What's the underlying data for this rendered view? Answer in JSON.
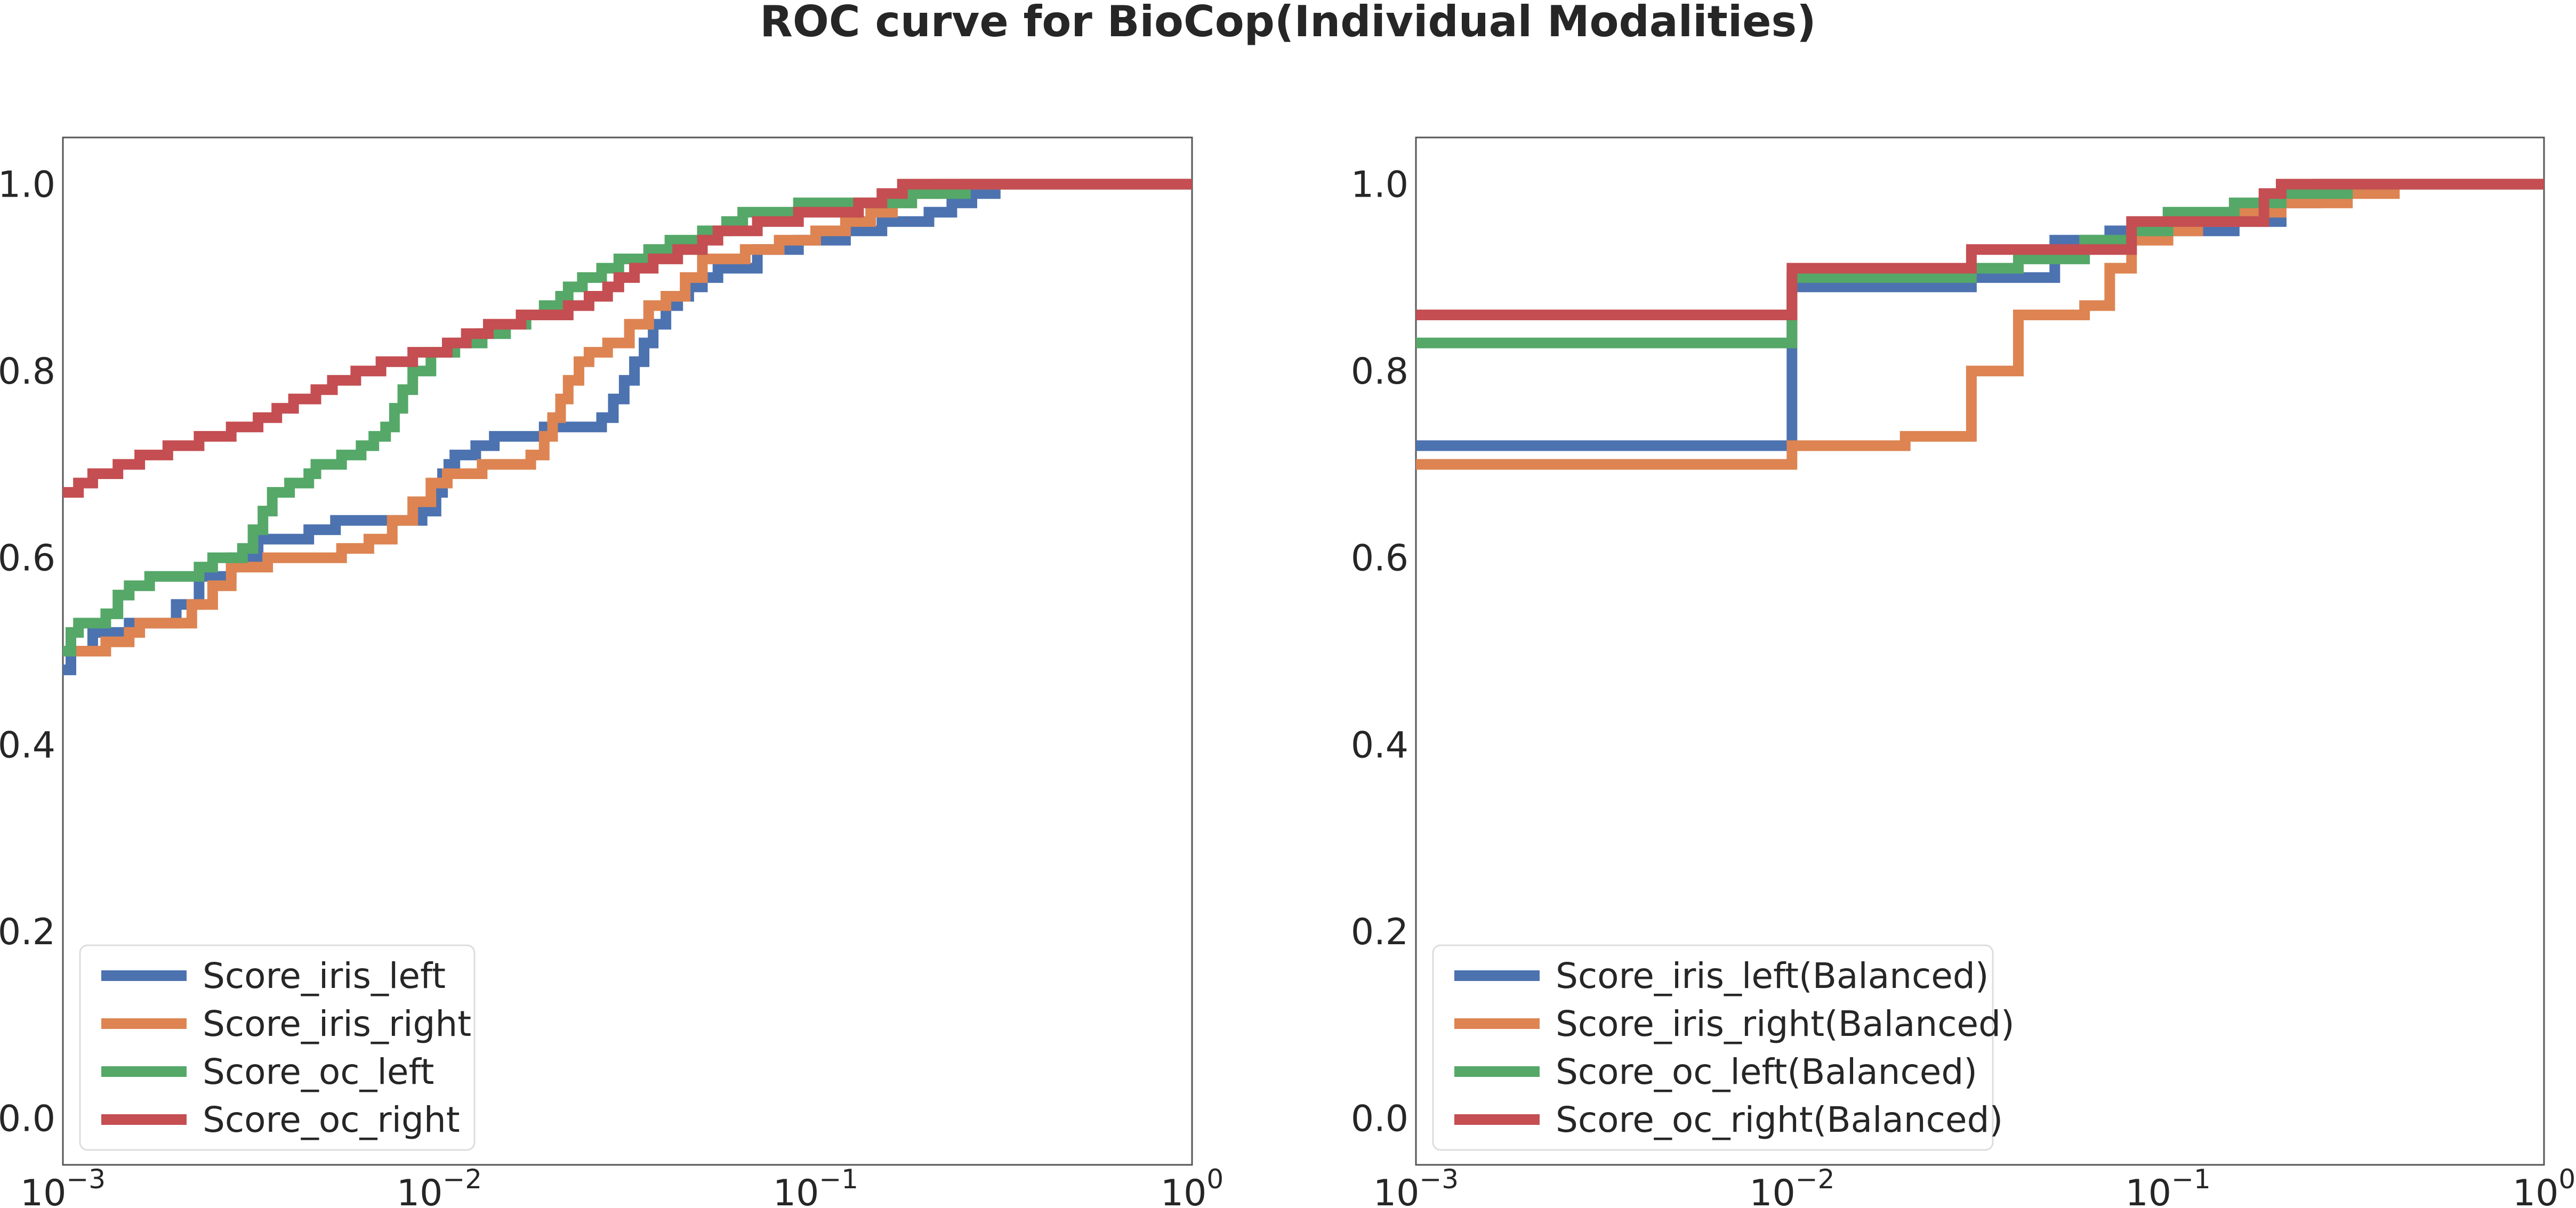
{
  "title": "ROC curve for BioCop(Individual Modalities)",
  "chart_data": [
    {
      "type": "line",
      "title": "",
      "xlabel": "",
      "ylabel": "",
      "xscale": "log",
      "xlim": [
        0.001,
        1
      ],
      "ylim": [
        -0.05,
        1.05
      ],
      "grid": false,
      "legend_position": "lower-left",
      "x_ticks": [
        {
          "value": 0.001,
          "base": "10",
          "exp": "−3"
        },
        {
          "value": 0.01,
          "base": "10",
          "exp": "−2"
        },
        {
          "value": 0.1,
          "base": "10",
          "exp": "−1"
        },
        {
          "value": 1,
          "base": "10",
          "exp": "0"
        }
      ],
      "y_ticks": [
        {
          "value": 0.0,
          "label": "0.0"
        },
        {
          "value": 0.2,
          "label": "0.2"
        },
        {
          "value": 0.4,
          "label": "0.4"
        },
        {
          "value": 0.6,
          "label": "0.6"
        },
        {
          "value": 0.8,
          "label": "0.8"
        },
        {
          "value": 1.0,
          "label": "1.0"
        }
      ],
      "series": [
        {
          "name": "Score_iris_left",
          "color": "#4c72b0",
          "x": [
            0.001,
            0.00105,
            0.0012,
            0.0015,
            0.002,
            0.0023,
            0.0028,
            0.0033,
            0.0045,
            0.0053,
            0.009,
            0.0098,
            0.0102,
            0.0106,
            0.011,
            0.0125,
            0.014,
            0.019,
            0.027,
            0.029,
            0.031,
            0.033,
            0.035,
            0.037,
            0.04,
            0.043,
            0.046,
            0.05,
            0.055,
            0.07,
            0.09,
            0.12,
            0.15,
            0.2,
            0.23,
            0.26,
            0.3,
            1.0
          ],
          "y": [
            0.48,
            0.5,
            0.52,
            0.53,
            0.55,
            0.58,
            0.6,
            0.62,
            0.63,
            0.64,
            0.65,
            0.67,
            0.69,
            0.7,
            0.71,
            0.72,
            0.73,
            0.74,
            0.75,
            0.77,
            0.79,
            0.81,
            0.83,
            0.85,
            0.87,
            0.88,
            0.89,
            0.9,
            0.91,
            0.93,
            0.94,
            0.95,
            0.96,
            0.97,
            0.98,
            0.99,
            1.0,
            1.0
          ]
        },
        {
          "name": "Score_iris_right",
          "color": "#dd8452",
          "x": [
            0.001,
            0.0013,
            0.0015,
            0.0016,
            0.0022,
            0.0025,
            0.0028,
            0.0035,
            0.0055,
            0.0065,
            0.0075,
            0.0085,
            0.0095,
            0.0105,
            0.013,
            0.0175,
            0.019,
            0.02,
            0.021,
            0.022,
            0.0235,
            0.025,
            0.028,
            0.032,
            0.036,
            0.04,
            0.045,
            0.05,
            0.065,
            0.08,
            0.1,
            0.12,
            0.14,
            0.16,
            0.18,
            0.21,
            0.25,
            1.0
          ],
          "y": [
            0.5,
            0.51,
            0.52,
            0.53,
            0.55,
            0.57,
            0.59,
            0.6,
            0.61,
            0.62,
            0.64,
            0.66,
            0.68,
            0.69,
            0.7,
            0.71,
            0.73,
            0.75,
            0.77,
            0.79,
            0.81,
            0.82,
            0.83,
            0.85,
            0.87,
            0.88,
            0.9,
            0.92,
            0.93,
            0.94,
            0.95,
            0.96,
            0.97,
            0.98,
            0.99,
            1.0,
            1.0,
            1.0
          ]
        },
        {
          "name": "Score_oc_left",
          "color": "#55a868",
          "x": [
            0.001,
            0.00105,
            0.0011,
            0.0013,
            0.0014,
            0.0015,
            0.0017,
            0.0023,
            0.0025,
            0.003,
            0.0032,
            0.0034,
            0.0036,
            0.004,
            0.0045,
            0.0047,
            0.0055,
            0.0062,
            0.0067,
            0.0072,
            0.0076,
            0.008,
            0.0085,
            0.0095,
            0.011,
            0.013,
            0.015,
            0.017,
            0.019,
            0.021,
            0.022,
            0.024,
            0.027,
            0.03,
            0.036,
            0.041,
            0.05,
            0.058,
            0.064,
            0.075,
            0.09,
            0.11,
            0.13,
            0.15,
            0.18,
            0.21,
            0.25,
            1.0
          ],
          "y": [
            0.5,
            0.52,
            0.53,
            0.54,
            0.56,
            0.57,
            0.58,
            0.59,
            0.6,
            0.61,
            0.63,
            0.65,
            0.67,
            0.68,
            0.69,
            0.7,
            0.71,
            0.72,
            0.73,
            0.74,
            0.76,
            0.78,
            0.8,
            0.82,
            0.83,
            0.84,
            0.85,
            0.86,
            0.87,
            0.88,
            0.89,
            0.9,
            0.91,
            0.92,
            0.93,
            0.94,
            0.95,
            0.96,
            0.97,
            0.97,
            0.98,
            0.98,
            0.98,
            0.98,
            0.99,
            0.99,
            1.0,
            1.0
          ]
        },
        {
          "name": "Score_oc_right",
          "color": "#c44e52",
          "x": [
            0.001,
            0.0011,
            0.0012,
            0.0014,
            0.0016,
            0.0019,
            0.0023,
            0.0028,
            0.0033,
            0.0037,
            0.0041,
            0.0047,
            0.0052,
            0.006,
            0.007,
            0.0085,
            0.0105,
            0.0118,
            0.0135,
            0.0165,
            0.022,
            0.025,
            0.028,
            0.03,
            0.033,
            0.037,
            0.043,
            0.05,
            0.055,
            0.07,
            0.09,
            0.13,
            0.15,
            0.17,
            1.0
          ],
          "y": [
            0.67,
            0.68,
            0.69,
            0.7,
            0.71,
            0.72,
            0.73,
            0.74,
            0.75,
            0.76,
            0.77,
            0.78,
            0.79,
            0.8,
            0.81,
            0.82,
            0.83,
            0.84,
            0.85,
            0.86,
            0.87,
            0.88,
            0.89,
            0.9,
            0.91,
            0.92,
            0.93,
            0.94,
            0.95,
            0.96,
            0.97,
            0.98,
            0.99,
            1.0,
            1.0
          ]
        }
      ]
    },
    {
      "type": "line",
      "title": "",
      "xlabel": "",
      "ylabel": "",
      "xscale": "log",
      "xlim": [
        0.001,
        1
      ],
      "ylim": [
        -0.05,
        1.05
      ],
      "grid": false,
      "legend_position": "lower-left",
      "x_ticks": [
        {
          "value": 0.001,
          "base": "10",
          "exp": "−3"
        },
        {
          "value": 0.01,
          "base": "10",
          "exp": "−2"
        },
        {
          "value": 0.1,
          "base": "10",
          "exp": "−1"
        },
        {
          "value": 1,
          "base": "10",
          "exp": "0"
        }
      ],
      "y_ticks": [
        {
          "value": 0.0,
          "label": "0.0"
        },
        {
          "value": 0.2,
          "label": "0.2"
        },
        {
          "value": 0.4,
          "label": "0.4"
        },
        {
          "value": 0.6,
          "label": "0.6"
        },
        {
          "value": 0.8,
          "label": "0.8"
        },
        {
          "value": 1.0,
          "label": "1.0"
        }
      ],
      "series": [
        {
          "name": "Score_iris_left(Balanced)",
          "color": "#4c72b0",
          "x": [
            0.001,
            0.01,
            0.02,
            0.03,
            0.05,
            0.07,
            0.1,
            0.15,
            0.2,
            0.25,
            1.0
          ],
          "y": [
            0.72,
            0.89,
            0.89,
            0.9,
            0.94,
            0.95,
            0.95,
            0.96,
            0.98,
            1.0,
            1.0
          ]
        },
        {
          "name": "Score_iris_right(Balanced)",
          "color": "#dd8452",
          "x": [
            0.001,
            0.01,
            0.02,
            0.03,
            0.04,
            0.05,
            0.06,
            0.07,
            0.08,
            0.1,
            0.12,
            0.15,
            0.2,
            0.3,
            0.4,
            1.0
          ],
          "y": [
            0.7,
            0.72,
            0.73,
            0.8,
            0.86,
            0.86,
            0.87,
            0.91,
            0.94,
            0.95,
            0.96,
            0.97,
            0.98,
            0.99,
            1.0,
            1.0
          ]
        },
        {
          "name": "Score_oc_left(Balanced)",
          "color": "#55a868",
          "x": [
            0.001,
            0.01,
            0.03,
            0.04,
            0.06,
            0.08,
            0.1,
            0.12,
            0.15,
            0.2,
            0.3,
            1.0
          ],
          "y": [
            0.83,
            0.9,
            0.91,
            0.92,
            0.94,
            0.95,
            0.97,
            0.97,
            0.98,
            0.99,
            1.0,
            1.0
          ]
        },
        {
          "name": "Score_oc_right(Balanced)",
          "color": "#c44e52",
          "x": [
            0.001,
            0.01,
            0.03,
            0.05,
            0.08,
            0.1,
            0.18,
            0.2,
            1.0
          ],
          "y": [
            0.86,
            0.91,
            0.93,
            0.93,
            0.96,
            0.96,
            0.99,
            1.0,
            1.0
          ]
        }
      ]
    }
  ]
}
